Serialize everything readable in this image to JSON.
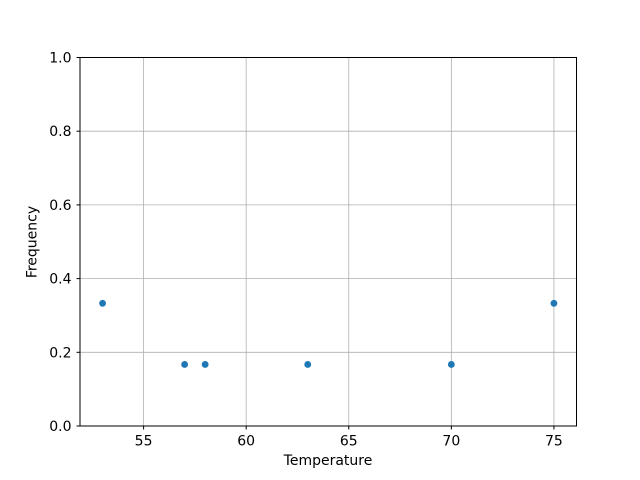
{
  "chart_data": {
    "type": "scatter",
    "title": "",
    "xlabel": "Temperature",
    "ylabel": "Frequency",
    "points": [
      {
        "x": 53,
        "y": 0.333
      },
      {
        "x": 57,
        "y": 0.167
      },
      {
        "x": 58,
        "y": 0.167
      },
      {
        "x": 63,
        "y": 0.167
      },
      {
        "x": 70,
        "y": 0.167
      },
      {
        "x": 75,
        "y": 0.333
      }
    ],
    "xlim": [
      51.9,
      76.1
    ],
    "ylim": [
      0.0,
      1.0
    ],
    "xticks": [
      55,
      60,
      65,
      70,
      75
    ],
    "xtick_labels": [
      "55",
      "60",
      "65",
      "70",
      "75"
    ],
    "yticks": [
      0.0,
      0.2,
      0.4,
      0.6,
      0.8,
      1.0
    ],
    "ytick_labels": [
      "0.0",
      "0.2",
      "0.4",
      "0.6",
      "0.8",
      "1.0"
    ],
    "grid": true,
    "legend": null,
    "marker_color": "#1f77b4",
    "grid_color": "#b0b0b0",
    "axis_color": "#000000",
    "background_color": "#ffffff"
  }
}
